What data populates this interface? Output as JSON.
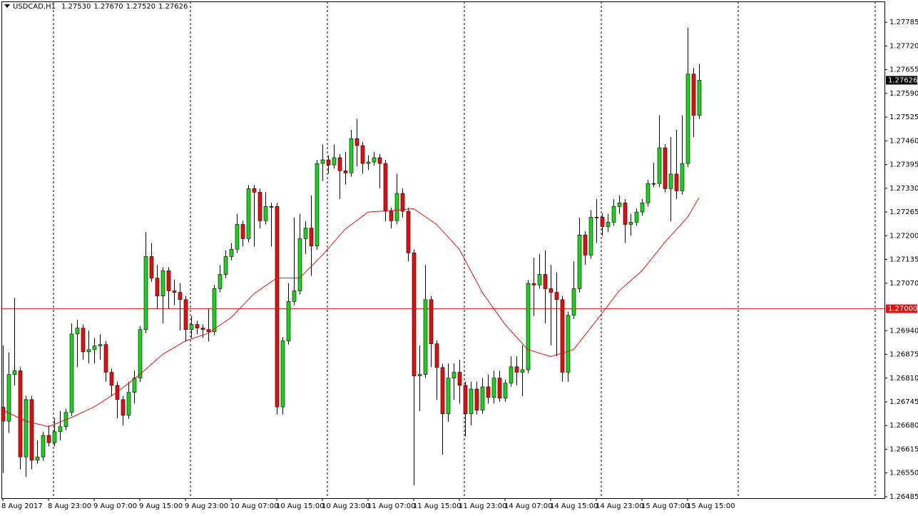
{
  "chart_data": {
    "type": "candlestick",
    "symbol": "USDCAD,H1",
    "header_values": [
      {
        "value": 1.2753,
        "label": "1.27530"
      },
      {
        "value": 1.2767,
        "label": "1.27670"
      },
      {
        "value": 1.2752,
        "label": "1.27520"
      },
      {
        "value": 1.27626,
        "label": "1.27626"
      }
    ],
    "categories": [
      "8 Aug 2017",
      null,
      null,
      null,
      null,
      null,
      null,
      null,
      "8 Aug 23:00",
      null,
      null,
      null,
      null,
      null,
      null,
      null,
      "9 Aug 07:00",
      null,
      null,
      null,
      null,
      null,
      null,
      null,
      "9 Aug 15:00",
      null,
      null,
      null,
      null,
      null,
      null,
      null,
      "9 Aug 23:00",
      null,
      null,
      null,
      null,
      null,
      null,
      null,
      "10 Aug 07:00",
      null,
      null,
      null,
      null,
      null,
      null,
      null,
      "10 Aug 15:00",
      null,
      null,
      null,
      null,
      null,
      null,
      null,
      "10 Aug 23:00",
      null,
      null,
      null,
      null,
      null,
      null,
      null,
      "11 Aug 07:00",
      null,
      null,
      null,
      null,
      null,
      null,
      null,
      "11 Aug 15:00",
      null,
      null,
      null,
      null,
      null,
      null,
      null,
      "11 Aug 23:00",
      null,
      null,
      null,
      null,
      null,
      null,
      null,
      "14 Aug 07:00",
      null,
      null,
      null,
      null,
      null,
      null,
      null,
      "14 Aug 15:00",
      null,
      null,
      null,
      null,
      null,
      null,
      null,
      "14 Aug 23:00",
      null,
      null,
      null,
      null,
      null,
      null,
      null,
      "15 Aug 07:00",
      null,
      null,
      null,
      null,
      null,
      null,
      null,
      "15 Aug 15:00",
      null,
      null
    ],
    "open": [
      1.2673,
      1.26692,
      1.2682,
      1.2683,
      1.26594,
      1.26751,
      1.26585,
      1.26594,
      1.26653,
      1.26633,
      1.26663,
      1.26677,
      1.26716,
      1.26931,
      1.26947,
      1.26882,
      1.26888,
      1.26898,
      1.26902,
      1.26826,
      1.2679,
      1.26751,
      1.26708,
      1.26771,
      1.2681,
      1.26943,
      1.27143,
      1.27084,
      1.27035,
      1.27104,
      1.27049,
      1.27045,
      1.27025,
      1.26943,
      1.26957,
      1.26947,
      1.26943,
      1.26937,
      1.27055,
      1.27094,
      1.27143,
      1.27163,
      1.27231,
      1.27192,
      1.27329,
      1.27319,
      1.27241,
      1.2728,
      1.2728,
      1.26731,
      1.26912,
      1.2702,
      1.27049,
      1.27192,
      1.27221,
      1.27172,
      1.27398,
      1.27408,
      1.27394,
      1.27414,
      1.27378,
      1.27372,
      1.27466,
      1.27447,
      1.27398,
      1.27402,
      1.27414,
      1.27398,
      1.27267,
      1.27241,
      1.27316,
      1.27267,
      1.27153,
      1.26816,
      1.2682,
      1.27025,
      1.26904,
      1.26839,
      1.26712,
      1.2681,
      1.26826,
      1.2679,
      1.26712,
      1.2678,
      1.26722,
      1.26786,
      1.26757,
      1.2681,
      1.26755,
      1.26796,
      1.26841,
      1.26826,
      1.26833,
      1.27069,
      1.27065,
      1.27094,
      1.27055,
      1.27045,
      1.27025,
      1.26826,
      1.26982,
      1.27055,
      1.27202,
      1.27147,
      1.27251,
      1.27251,
      1.27225,
      1.27237,
      1.2728,
      1.2729,
      1.27231,
      1.27237,
      1.27265,
      1.2729,
      1.27343,
      1.27343,
      1.27441,
      1.27329,
      1.27369,
      1.27323,
      1.27398,
      1.27643,
      1.2753
    ],
    "high": [
      1.269,
      1.2688,
      1.2703,
      1.2684,
      1.26761,
      1.26761,
      1.2664,
      1.26663,
      1.2668,
      1.267,
      1.2672,
      1.26726,
      1.2696,
      1.2697,
      1.26957,
      1.2694,
      1.2692,
      1.2693,
      1.26912,
      1.26836,
      1.268,
      1.26761,
      1.268,
      1.2683,
      1.26953,
      1.2721,
      1.2718,
      1.2712,
      1.27114,
      1.27114,
      1.2708,
      1.2707,
      1.27035,
      1.2698,
      1.26967,
      1.26957,
      1.27,
      1.27065,
      1.2712,
      1.2716,
      1.2718,
      1.2726,
      1.27241,
      1.27339,
      1.27339,
      1.27329,
      1.2732,
      1.2729,
      1.2729,
      1.26922,
      1.2707,
      1.2725,
      1.2726,
      1.2724,
      1.2731,
      1.27408,
      1.2745,
      1.2742,
      1.2745,
      1.27424,
      1.2743,
      1.2749,
      1.2752,
      1.27457,
      1.2742,
      1.2743,
      1.27424,
      1.27408,
      1.27277,
      1.2737,
      1.2733,
      1.27277,
      1.27163,
      1.269,
      1.2712,
      1.27035,
      1.26914,
      1.26849,
      1.2685,
      1.2685,
      1.2686,
      1.268,
      1.268,
      1.268,
      1.2681,
      1.2682,
      1.2683,
      1.2683,
      1.26806,
      1.2687,
      1.2687,
      1.269,
      1.27079,
      1.2714,
      1.2715,
      1.2716,
      1.2712,
      1.271,
      1.27035,
      1.26992,
      1.2713,
      1.2725,
      1.27212,
      1.2727,
      1.273,
      1.27261,
      1.2726,
      1.273,
      1.2731,
      1.273,
      1.2726,
      1.27275,
      1.273,
      1.27353,
      1.274,
      1.2753,
      1.27451,
      1.2747,
      1.2749,
      1.2753,
      1.2777,
      1.2766,
      1.2767
    ],
    "low": [
      1.2655,
      1.2666,
      1.2679,
      1.2656,
      1.2654,
      1.2656,
      1.26575,
      1.26584,
      1.26623,
      1.26623,
      1.2664,
      1.26667,
      1.26706,
      1.2684,
      1.2686,
      1.2685,
      1.2685,
      1.2686,
      1.268,
      1.2676,
      1.267,
      1.2668,
      1.26698,
      1.2674,
      1.268,
      1.26933,
      1.27074,
      1.27,
      1.2696,
      1.27,
      1.2701,
      1.2694,
      1.2691,
      1.2692,
      1.2693,
      1.2692,
      1.2691,
      1.26927,
      1.27045,
      1.27084,
      1.27133,
      1.27153,
      1.2717,
      1.27182,
      1.2717,
      1.2722,
      1.27231,
      1.2717,
      1.2671,
      1.2671,
      1.26902,
      1.2701,
      1.27039,
      1.2715,
      1.2709,
      1.27162,
      1.2735,
      1.2737,
      1.27384,
      1.273,
      1.2734,
      1.27362,
      1.2739,
      1.2737,
      1.2738,
      1.27392,
      1.2733,
      1.2724,
      1.2722,
      1.27231,
      1.2725,
      1.2713,
      1.26516,
      1.2672,
      1.2681,
      1.2684,
      1.2675,
      1.266,
      1.2669,
      1.2675,
      1.2674,
      1.2665,
      1.2668,
      1.2671,
      1.26712,
      1.2674,
      1.2674,
      1.26745,
      1.26745,
      1.26786,
      1.2679,
      1.2676,
      1.26823,
      1.2698,
      1.27055,
      1.2696,
      1.269,
      1.2687,
      1.268,
      1.268,
      1.26972,
      1.27045,
      1.2712,
      1.27137,
      1.2718,
      1.272,
      1.2721,
      1.27227,
      1.2726,
      1.2718,
      1.272,
      1.27227,
      1.27255,
      1.2728,
      1.27333,
      1.27333,
      1.27319,
      1.2724,
      1.273,
      1.27313,
      1.27388,
      1.2747,
      1.2752
    ],
    "close": [
      1.26692,
      1.2682,
      1.2683,
      1.26594,
      1.26751,
      1.26585,
      1.26594,
      1.26653,
      1.26633,
      1.26663,
      1.26677,
      1.26716,
      1.26931,
      1.26947,
      1.26882,
      1.26888,
      1.26898,
      1.26902,
      1.26826,
      1.2679,
      1.26751,
      1.26708,
      1.26771,
      1.2681,
      1.26943,
      1.27143,
      1.27084,
      1.27035,
      1.27104,
      1.27049,
      1.27045,
      1.27025,
      1.26943,
      1.26957,
      1.26947,
      1.26943,
      1.26937,
      1.27055,
      1.27094,
      1.27143,
      1.27163,
      1.27231,
      1.27192,
      1.27329,
      1.27319,
      1.27241,
      1.2728,
      1.2728,
      1.26731,
      1.26912,
      1.2702,
      1.27049,
      1.27192,
      1.27221,
      1.27172,
      1.27398,
      1.27408,
      1.27394,
      1.27414,
      1.27378,
      1.27372,
      1.27466,
      1.27447,
      1.27398,
      1.27402,
      1.27414,
      1.27398,
      1.27267,
      1.27241,
      1.27316,
      1.27267,
      1.27153,
      1.26816,
      1.2682,
      1.27025,
      1.26904,
      1.26839,
      1.26712,
      1.2681,
      1.26826,
      1.2679,
      1.26712,
      1.2678,
      1.26722,
      1.26786,
      1.26757,
      1.2681,
      1.26755,
      1.26796,
      1.26841,
      1.26826,
      1.26833,
      1.27069,
      1.27065,
      1.27094,
      1.27055,
      1.27045,
      1.27025,
      1.26826,
      1.26982,
      1.27055,
      1.27202,
      1.27147,
      1.27251,
      1.27251,
      1.27225,
      1.27237,
      1.2728,
      1.2729,
      1.27231,
      1.27237,
      1.27265,
      1.2729,
      1.27343,
      1.27343,
      1.27441,
      1.27329,
      1.27369,
      1.27323,
      1.27398,
      1.27643,
      1.2753,
      1.27626
    ],
    "up_color": "#22cc22",
    "down_color": "#e01010",
    "moving_average": {
      "color": "#e01010",
      "x": [
        0,
        4,
        8,
        12,
        16,
        20,
        24,
        28,
        32,
        36,
        40,
        44,
        48,
        52,
        56,
        60,
        64,
        68,
        72,
        76,
        80,
        84,
        88,
        92,
        96,
        100,
        104,
        108,
        112,
        116,
        120,
        122
      ],
      "values": [
        1.26722,
        1.26692,
        1.26677,
        1.26702,
        1.26731,
        1.26771,
        1.2682,
        1.26875,
        1.26912,
        1.26933,
        1.26976,
        1.27041,
        1.27084,
        1.27084,
        1.27147,
        1.27218,
        1.27265,
        1.27269,
        1.27274,
        1.27231,
        1.27163,
        1.27045,
        1.26957,
        1.26888,
        1.26869,
        1.26888,
        1.26967,
        1.27049,
        1.27104,
        1.27182,
        1.27251,
        1.27304
      ]
    },
    "hline": {
      "value": 1.27,
      "label": "1.27000",
      "color": "#e01010"
    },
    "bid": {
      "value": 1.27626,
      "label": "1.27626"
    },
    "ylim": [
      1.26481,
      1.27842
    ],
    "yticks": [
      1.27785,
      {
        "value": 1.2772,
        "label": "1.27720"
      },
      1.27655,
      {
        "value": 1.2759,
        "label": "1.27590"
      },
      1.27525,
      {
        "value": 1.2746,
        "label": "1.27460"
      },
      1.27395,
      {
        "value": 1.2733,
        "label": "1.27330"
      },
      1.27265,
      {
        "value": 1.272,
        "label": "1.27200"
      },
      1.27135,
      {
        "value": 1.2707,
        "label": "1.27070"
      },
      {
        "value": 1.2694,
        "label": "1.26940"
      },
      1.26875,
      {
        "value": 1.2681,
        "label": "1.26810"
      },
      1.26745,
      {
        "value": 1.2668,
        "label": "1.26680"
      },
      1.26615,
      {
        "value": 1.2655,
        "label": "1.26550"
      },
      1.26485
    ]
  }
}
